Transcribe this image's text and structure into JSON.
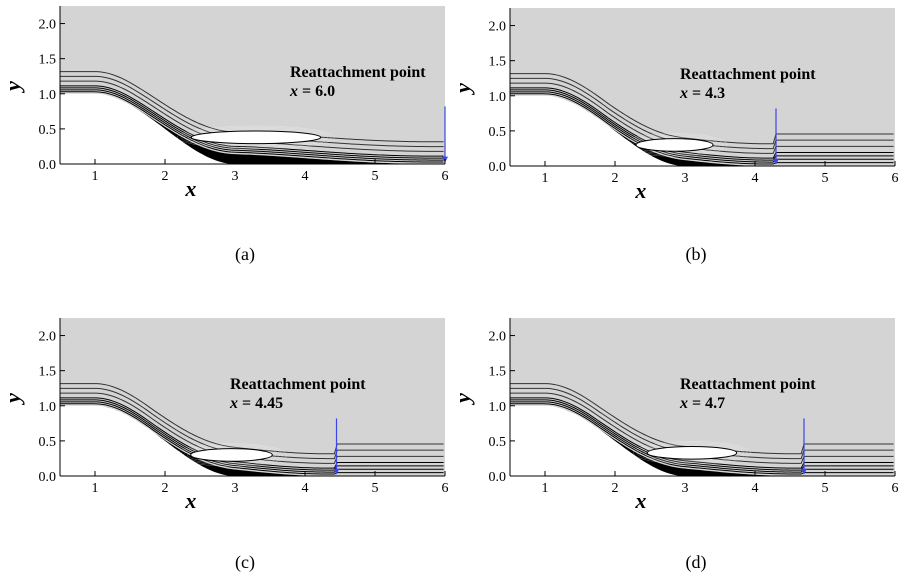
{
  "chart_data": [
    {
      "type": "streamline",
      "panel_label": "(a)",
      "xlabel": "x",
      "ylabel": "y",
      "xlim": [
        0.5,
        6
      ],
      "ylim": [
        0,
        2.25
      ],
      "xticks": [
        1,
        2,
        3,
        4,
        5,
        6
      ],
      "yticks": [
        0.0,
        0.5,
        1.0,
        1.5,
        2.0
      ],
      "ytick_labels": [
        "0.0",
        "0.5",
        "1.0",
        "1.5",
        "2.0"
      ],
      "annotation": {
        "title": "Reattachment point",
        "var": "x",
        "value": "6.0"
      },
      "reattachment_x": 6.0,
      "vortex_center": [
        3.3,
        0.38
      ]
    },
    {
      "type": "streamline",
      "panel_label": "(b)",
      "xlabel": "x",
      "ylabel": "y",
      "xlim": [
        0.5,
        6
      ],
      "ylim": [
        0,
        2.25
      ],
      "xticks": [
        1,
        2,
        3,
        4,
        5,
        6
      ],
      "yticks": [
        0.0,
        0.5,
        1.0,
        1.5,
        2.0
      ],
      "ytick_labels": [
        "0.0",
        "0.5",
        "1.0",
        "1.5",
        "2.0"
      ],
      "annotation": {
        "title": "Reattachment point",
        "var": "x",
        "value": "4.3"
      },
      "reattachment_x": 4.3,
      "vortex_center": [
        2.85,
        0.3
      ]
    },
    {
      "type": "streamline",
      "panel_label": "(c)",
      "xlabel": "x",
      "ylabel": "y",
      "xlim": [
        0.5,
        6
      ],
      "ylim": [
        0,
        2.25
      ],
      "xticks": [
        1,
        2,
        3,
        4,
        5,
        6
      ],
      "yticks": [
        0.0,
        0.5,
        1.0,
        1.5,
        2.0
      ],
      "ytick_labels": [
        "0.0",
        "0.5",
        "1.0",
        "1.5",
        "2.0"
      ],
      "annotation": {
        "title": "Reattachment point",
        "var": "x",
        "value": "4.45"
      },
      "reattachment_x": 4.45,
      "vortex_center": [
        2.95,
        0.3
      ]
    },
    {
      "type": "streamline",
      "panel_label": "(d)",
      "xlabel": "x",
      "ylabel": "y",
      "xlim": [
        0.5,
        6
      ],
      "ylim": [
        0,
        2.25
      ],
      "xticks": [
        1,
        2,
        3,
        4,
        5,
        6
      ],
      "yticks": [
        0.0,
        0.5,
        1.0,
        1.5,
        2.0
      ],
      "ytick_labels": [
        "0.0",
        "0.5",
        "1.0",
        "1.5",
        "2.0"
      ],
      "annotation": {
        "title": "Reattachment point",
        "var": "x",
        "value": "4.7"
      },
      "reattachment_x": 4.7,
      "vortex_center": [
        3.1,
        0.33
      ]
    }
  ],
  "colors": {
    "fluid_background": "#d4d4d4",
    "streamline": "#000000",
    "arrow": "#3b46e6",
    "axis": "#000000"
  }
}
